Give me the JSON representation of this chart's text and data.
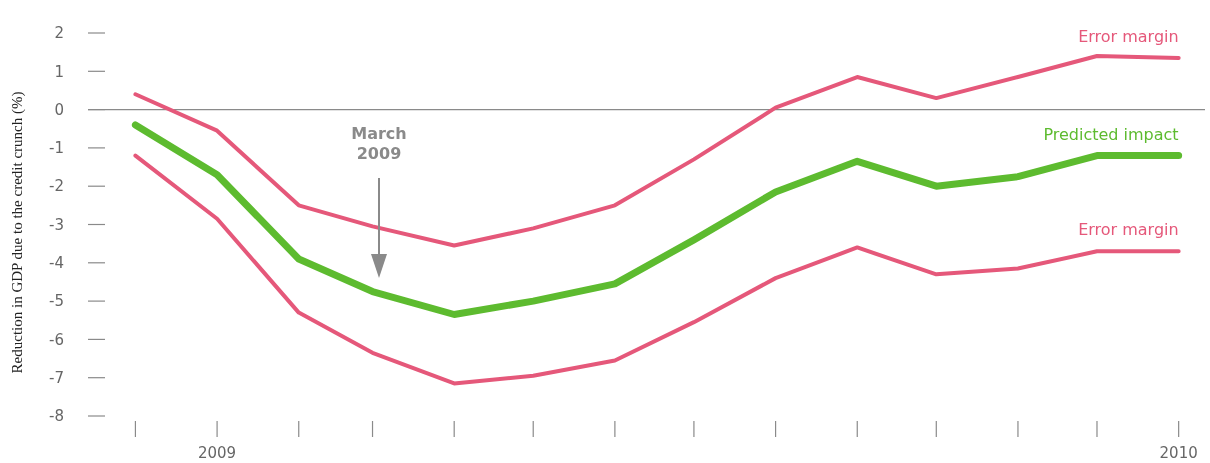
{
  "chart_data": {
    "type": "line",
    "ylabel": "Reduction in GDP due to the credit crunch (%)",
    "x": [
      "2008-12",
      "2009-01",
      "2009-02",
      "2009-03",
      "2009-04",
      "2009-05",
      "2009-06",
      "2009-07",
      "2009-08",
      "2009-09",
      "2009-10",
      "2009-11",
      "2009-12",
      "2010-01"
    ],
    "xticks": [
      {
        "value": "2008-12",
        "label": null
      },
      {
        "value": "2009-01",
        "label": "2009"
      },
      {
        "value": "2009-02",
        "label": null
      },
      {
        "value": "2009-03",
        "label": null
      },
      {
        "value": "2009-04",
        "label": null
      },
      {
        "value": "2009-05",
        "label": null
      },
      {
        "value": "2009-06",
        "label": null
      },
      {
        "value": "2009-07",
        "label": null
      },
      {
        "value": "2009-08",
        "label": null
      },
      {
        "value": "2009-09",
        "label": null
      },
      {
        "value": "2009-10",
        "label": null
      },
      {
        "value": "2009-11",
        "label": null
      },
      {
        "value": "2009-12",
        "label": null
      },
      {
        "value": "2010-01",
        "label": "2010"
      }
    ],
    "xlim": [
      "2008-11-13",
      "2010-01-11"
    ],
    "ylim": [
      -8,
      2
    ],
    "yticks": [
      -8,
      -7,
      -6,
      -5,
      -4,
      -3,
      -2,
      -1,
      0,
      1,
      2
    ],
    "series": [
      {
        "name": "Error margin",
        "color": "#e5587a",
        "values": [
          0.4,
          -0.55,
          -2.5,
          -3.05,
          -3.55,
          -3.1,
          -2.5,
          -1.3,
          0.05,
          0.85,
          0.3,
          0.85,
          1.4,
          1.35
        ]
      },
      {
        "name": "Predicted impact",
        "color": "#5dbb2f",
        "values": [
          -0.4,
          -1.7,
          -3.9,
          -4.75,
          -5.35,
          -5.0,
          -4.55,
          -3.4,
          -2.15,
          -1.35,
          -2.0,
          -1.75,
          -1.2,
          -1.2
        ]
      },
      {
        "name": "Error margin",
        "color": "#e5587a",
        "values": [
          -1.2,
          -2.85,
          -5.3,
          -6.35,
          -7.15,
          -6.95,
          -6.55,
          -5.55,
          -4.4,
          -3.6,
          -4.3,
          -4.15,
          -3.7,
          -3.7
        ]
      }
    ],
    "ref_lines": [
      {
        "axis": "y",
        "value": 0,
        "label": null,
        "color": "#8a8a8a"
      }
    ],
    "annotations": [
      "March 2009"
    ],
    "grid": false,
    "marker": "none",
    "line_style": "solid"
  }
}
